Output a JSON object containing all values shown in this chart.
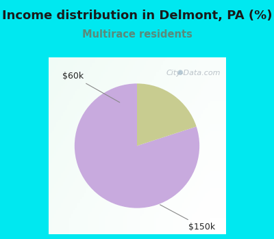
{
  "title": "Income distribution in Delmont, PA (%)",
  "subtitle": "Multirace residents",
  "title_color": "#1a1a1a",
  "subtitle_color": "#5a8a7a",
  "slices": [
    {
      "label": "$150k",
      "value": 80,
      "color": "#c8aade"
    },
    {
      "label": "$60k",
      "value": 20,
      "color": "#c8cc90"
    }
  ],
  "background_cyan": "#00e8f0",
  "background_chart": "#e8f5e8",
  "watermark": "City-Data.com",
  "startangle": 90,
  "figsize": [
    4.0,
    3.5
  ],
  "dpi": 100,
  "title_fontsize": 13,
  "subtitle_fontsize": 10.5
}
